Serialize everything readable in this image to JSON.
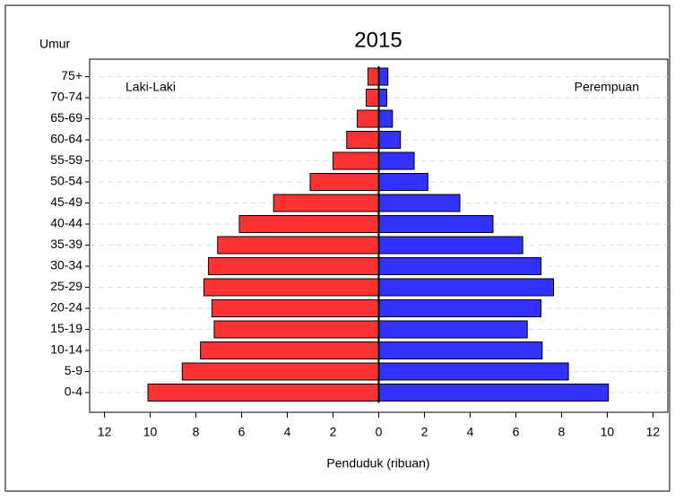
{
  "chart_data": {
    "type": "pyramid",
    "title": "2015",
    "y_label": "Umur",
    "x_label": "Penduduk (ribuan)",
    "categories": [
      "0-4",
      "5-9",
      "10-14",
      "15-19",
      "20-24",
      "25-29",
      "30-34",
      "35-39",
      "40-44",
      "45-49",
      "50-54",
      "55-59",
      "60-64",
      "65-69",
      "70-74",
      "75+"
    ],
    "series": [
      {
        "name": "Laki-Laki",
        "color": "#ff3333",
        "values": [
          -10.1,
          -8.6,
          -7.8,
          -7.2,
          -7.3,
          -7.65,
          -7.45,
          -7.05,
          -6.1,
          -4.6,
          -3.0,
          -2.0,
          -1.4,
          -0.94,
          -0.55,
          -0.47
        ]
      },
      {
        "name": "Perempuan",
        "color": "#3333ff",
        "values": [
          10.05,
          8.3,
          7.15,
          6.5,
          7.1,
          7.65,
          7.1,
          6.3,
          5.0,
          3.55,
          2.15,
          1.55,
          0.95,
          0.6,
          0.35,
          0.4
        ]
      }
    ],
    "xlim": [
      -12.65,
      12.65
    ],
    "xticks": [
      {
        "value": -12,
        "label": "12"
      },
      {
        "value": -10,
        "label": "10"
      },
      {
        "value": -8,
        "label": "8"
      },
      {
        "value": -6,
        "label": "6"
      },
      {
        "value": -4,
        "label": "4"
      },
      {
        "value": -2,
        "label": "2"
      },
      0,
      2,
      4,
      6,
      8,
      10,
      12
    ],
    "grid": true
  }
}
